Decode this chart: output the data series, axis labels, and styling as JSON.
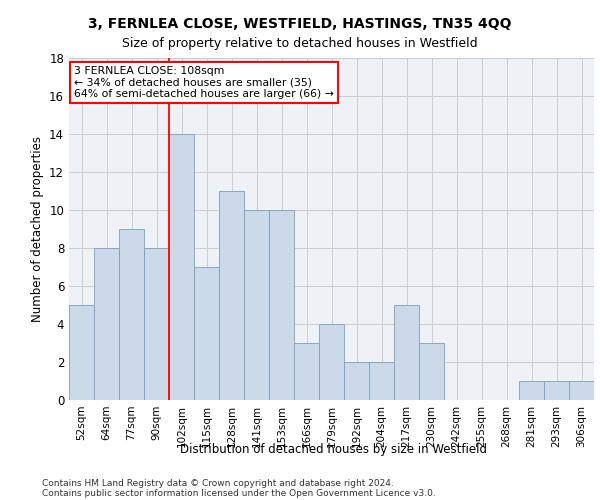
{
  "title": "3, FERNLEA CLOSE, WESTFIELD, HASTINGS, TN35 4QQ",
  "subtitle": "Size of property relative to detached houses in Westfield",
  "xlabel": "Distribution of detached houses by size in Westfield",
  "ylabel": "Number of detached properties",
  "bar_color": "#ccd9e8",
  "bar_edge_color": "#7a9fc0",
  "categories": [
    "52sqm",
    "64sqm",
    "77sqm",
    "90sqm",
    "102sqm",
    "115sqm",
    "128sqm",
    "141sqm",
    "153sqm",
    "166sqm",
    "179sqm",
    "192sqm",
    "204sqm",
    "217sqm",
    "230sqm",
    "242sqm",
    "255sqm",
    "268sqm",
    "281sqm",
    "293sqm",
    "306sqm"
  ],
  "values": [
    5,
    8,
    9,
    8,
    14,
    7,
    11,
    10,
    10,
    3,
    4,
    2,
    2,
    5,
    3,
    0,
    0,
    0,
    1,
    1,
    1
  ],
  "annotation_text": "3 FERNLEA CLOSE: 108sqm\n← 34% of detached houses are smaller (35)\n64% of semi-detached houses are larger (66) →",
  "vline_x_idx": 4,
  "ylim": [
    0,
    18
  ],
  "yticks": [
    0,
    2,
    4,
    6,
    8,
    10,
    12,
    14,
    16,
    18
  ],
  "footer_line1": "Contains HM Land Registry data © Crown copyright and database right 2024.",
  "footer_line2": "Contains public sector information licensed under the Open Government Licence v3.0.",
  "grid_color": "#cccccc",
  "background_color": "#eef2f7",
  "title_fontsize": 10,
  "subtitle_fontsize": 9
}
